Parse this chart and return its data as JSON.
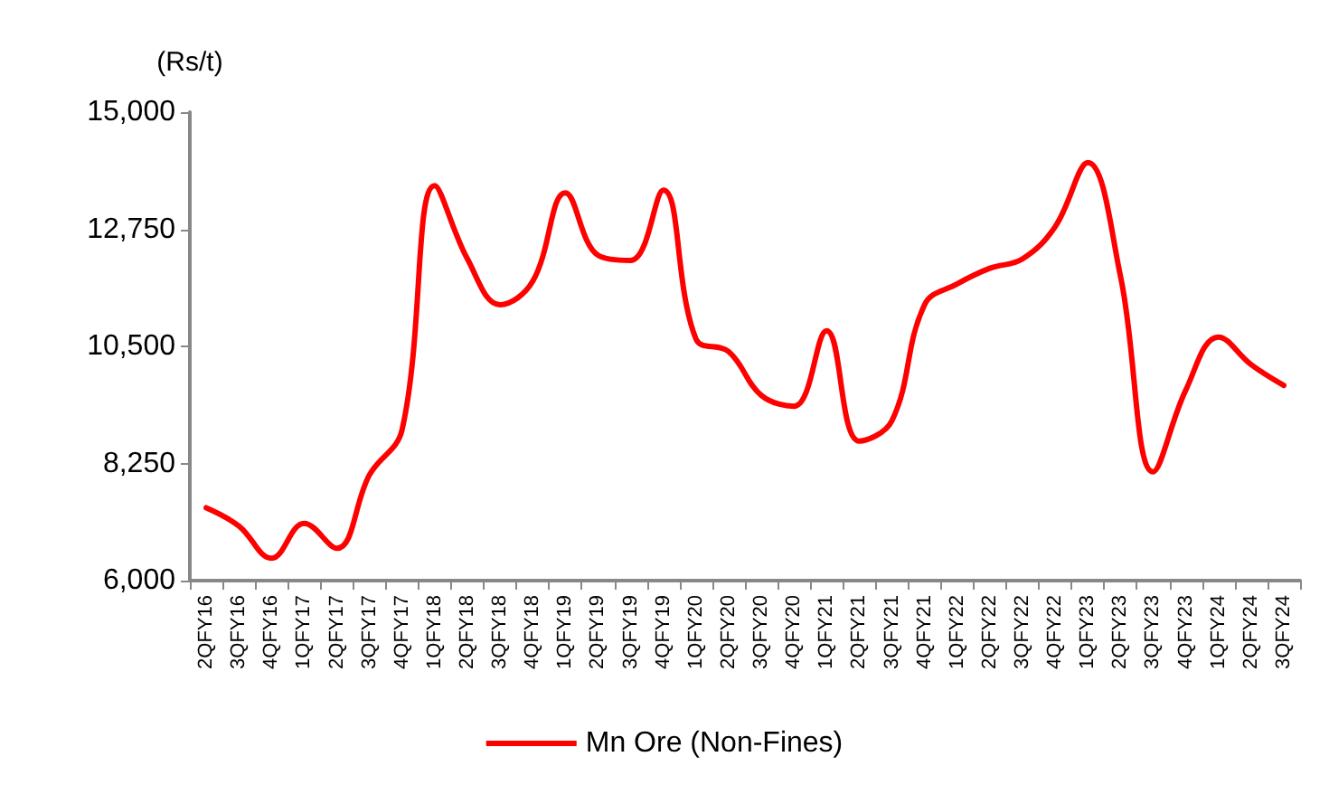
{
  "chart_data": {
    "type": "line",
    "ylabel": "(Rs/t)",
    "categories": [
      "2QFY16",
      "3QFY16",
      "4QFY16",
      "1QFY17",
      "2QFY17",
      "3QFY17",
      "4QFY17",
      "1QFY18",
      "2QFY18",
      "3QFY18",
      "4QFY18",
      "1QFY19",
      "2QFY19",
      "3QFY19",
      "4QFY19",
      "1QFY20",
      "2QFY20",
      "3QFY20",
      "4QFY20",
      "1QFY21",
      "2QFY21",
      "3QFY21",
      "4QFY21",
      "1QFY22",
      "2QFY22",
      "3QFY22",
      "4QFY22",
      "1QFY23",
      "2QFY23",
      "3QFY23",
      "4QFY23",
      "1QFY24",
      "2QFY24",
      "3QFY24"
    ],
    "series": [
      {
        "name": "Mn Ore (Non-Fines)",
        "color": "#ff0000",
        "values": [
          7400,
          7050,
          6430,
          7100,
          6620,
          8030,
          8900,
          13590,
          12180,
          11300,
          11750,
          13450,
          12250,
          12150,
          13500,
          10640,
          10400,
          9560,
          9350,
          10800,
          8680,
          9070,
          11300,
          11700,
          12000,
          12180,
          12800,
          14030,
          11850,
          8090,
          9660,
          10680,
          10150,
          9750
        ]
      }
    ],
    "ylim": [
      6000,
      15000
    ],
    "yticks": [
      {
        "value": 6000,
        "label": "6,000"
      },
      {
        "value": 8250,
        "label": "8,250"
      },
      {
        "value": 10500,
        "label": "10,500"
      },
      {
        "value": 12750,
        "label": "12,750"
      },
      {
        "value": 15000,
        "label": "15,000"
      }
    ],
    "grid": false,
    "legend": "bottom",
    "marker": "none",
    "line_style": "solid"
  }
}
